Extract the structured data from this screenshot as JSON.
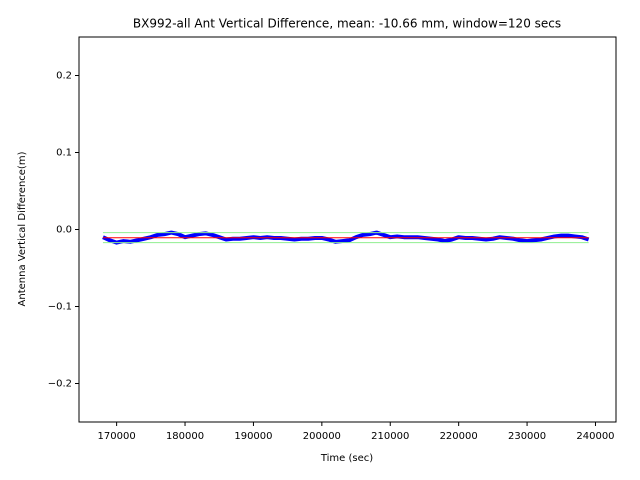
{
  "chart_data": {
    "type": "line",
    "title": "BX992-all Ant Vertical Difference, mean: -10.66 mm, window=120 secs",
    "x_label": "Time (sec)",
    "y_label": "Antenna Vertical Difference(m)",
    "xlim": [
      164500,
      243000
    ],
    "ylim": [
      -0.25,
      0.25
    ],
    "xticks": [
      170000,
      180000,
      190000,
      200000,
      210000,
      220000,
      230000,
      240000
    ],
    "yticks": [
      {
        "value": -0.2,
        "label": "−0.2"
      },
      {
        "value": -0.1,
        "label": "−0.1"
      },
      {
        "value": 0,
        "label": "0.0"
      },
      0.1,
      0.2
    ],
    "x": [
      168000,
      169000,
      170000,
      171000,
      172000,
      173000,
      174000,
      175000,
      176000,
      177000,
      178000,
      179000,
      180000,
      181000,
      182000,
      183000,
      184000,
      185000,
      186000,
      187000,
      188000,
      189000,
      190000,
      191000,
      192000,
      193000,
      194000,
      195000,
      196000,
      197000,
      198000,
      199000,
      200000,
      201000,
      202000,
      203000,
      204000,
      205000,
      206000,
      207000,
      208000,
      209000,
      210000,
      211000,
      212000,
      213000,
      214000,
      215000,
      216000,
      217000,
      218000,
      219000,
      220000,
      221000,
      222000,
      223000,
      224000,
      225000,
      226000,
      227000,
      228000,
      229000,
      230000,
      231000,
      232000,
      233000,
      234000,
      235000,
      236000,
      237000,
      238000,
      239000
    ],
    "series": [
      {
        "color": "#0000ff",
        "values": [
          -0.01,
          -0.014,
          -0.017,
          -0.015,
          -0.016,
          -0.014,
          -0.012,
          -0.01,
          -0.007,
          -0.006,
          -0.004,
          -0.006,
          -0.01,
          -0.008,
          -0.006,
          -0.005,
          -0.007,
          -0.01,
          -0.013,
          -0.012,
          -0.012,
          -0.011,
          -0.01,
          -0.011,
          -0.01,
          -0.011,
          -0.011,
          -0.012,
          -0.013,
          -0.012,
          -0.012,
          -0.011,
          -0.011,
          -0.013,
          -0.016,
          -0.015,
          -0.014,
          -0.01,
          -0.007,
          -0.006,
          -0.004,
          -0.007,
          -0.01,
          -0.009,
          -0.01,
          -0.01,
          -0.01,
          -0.011,
          -0.012,
          -0.013,
          -0.015,
          -0.013,
          -0.01,
          -0.011,
          -0.011,
          -0.012,
          -0.013,
          -0.012,
          -0.01,
          -0.011,
          -0.012,
          -0.014,
          -0.015,
          -0.014,
          -0.013,
          -0.011,
          -0.009,
          -0.008,
          -0.008,
          -0.009,
          -0.01,
          -0.013
        ]
      }
    ],
    "reference_lines": [
      {
        "value": -0.01066,
        "color": "#ff0000"
      },
      {
        "value": -0.004,
        "color": "#90ee90"
      },
      {
        "value": -0.017,
        "color": "#90ee90"
      }
    ]
  }
}
